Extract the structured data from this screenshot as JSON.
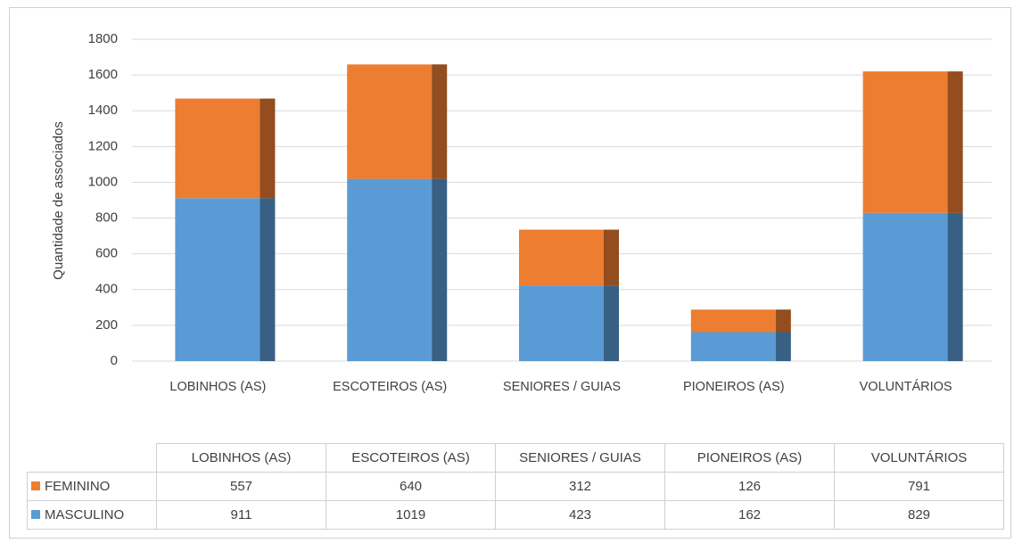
{
  "chart_data": {
    "type": "stacked_bar",
    "y_axis_label": "Quantidade de associados",
    "categories": [
      "LOBINHOS (AS)",
      "ESCOTEIROS (AS)",
      "SENIORES / GUIAS",
      "PIONEIROS (AS)",
      "VOLUNTÁRIOS"
    ],
    "series": [
      {
        "name": "FEMININO",
        "color": "#ED7D31",
        "values": [
          557,
          640,
          312,
          126,
          791
        ]
      },
      {
        "name": "MASCULINO",
        "color": "#5B9BD5",
        "values": [
          911,
          1019,
          423,
          162,
          829
        ]
      }
    ],
    "stack_order": [
      "MASCULINO",
      "FEMININO"
    ],
    "ylim": [
      0,
      1800
    ],
    "yticks": [
      0,
      200,
      400,
      600,
      800,
      1000,
      1200,
      1400,
      1600,
      1800
    ],
    "grid": true
  }
}
